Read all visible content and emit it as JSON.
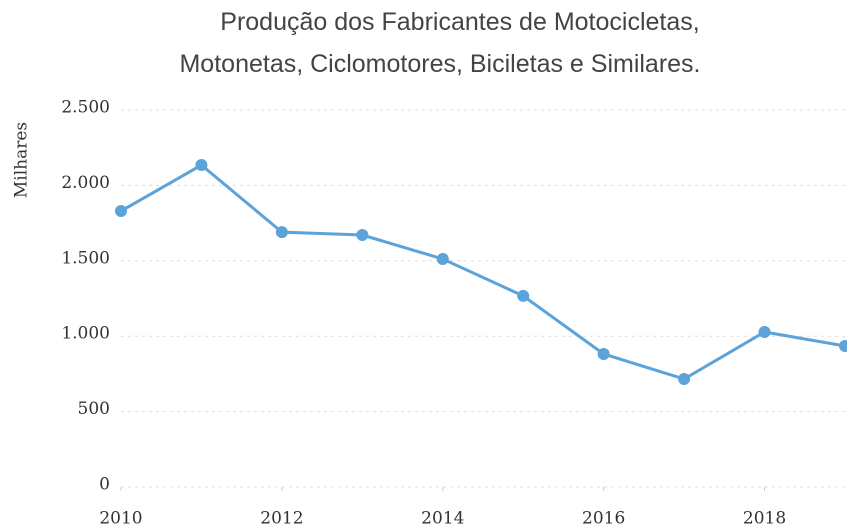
{
  "chart_data": {
    "type": "line",
    "title": [
      "Produção dos Fabricantes de Motocicletas,",
      "Motonetas, Ciclomotores, Biciletas e Similares."
    ],
    "y_label": "Milhares",
    "x": [
      2010,
      2011,
      2012,
      2013,
      2014,
      2015,
      2016,
      2017,
      2018,
      2019
    ],
    "series": [
      {
        "name": "Produção",
        "color": "#5ba3d9",
        "values": [
          1830,
          2135,
          1690,
          1671,
          1512,
          1267,
          882,
          716,
          1028,
          935
        ]
      }
    ],
    "xlim": [
      2010,
      2019
    ],
    "xticks": [
      2010,
      2012,
      2014,
      2016,
      2018
    ],
    "ylim": [
      0,
      2500
    ],
    "yticks": [
      0,
      500,
      {
        "value": 1000,
        "label": "1.000"
      },
      {
        "value": 1500,
        "label": "1.500"
      },
      {
        "value": 2000,
        "label": "2.000"
      },
      {
        "value": 2500,
        "label": "2.500"
      }
    ],
    "grid": true
  }
}
